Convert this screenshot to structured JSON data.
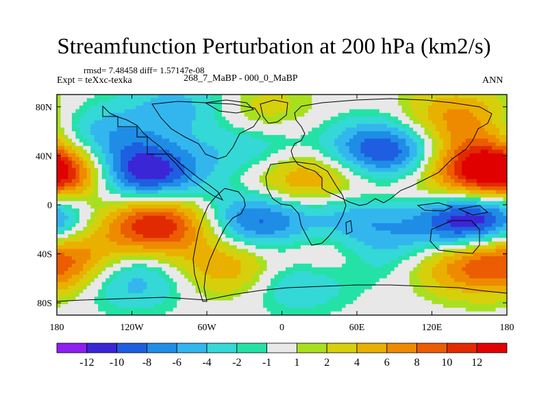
{
  "chart_data": {
    "type": "heatmap",
    "title": "Streamfunction Perturbation at 200 hPa (km2/s)",
    "stats_text": "rmsd= 7.48458 diff= 1.57147e-08",
    "left_label": "Expt = teXxc-texka",
    "center_label": "268_7_MaBP - 000_0_MaBP",
    "right_label": "ANN",
    "xlim": [
      -180,
      180
    ],
    "ylim": [
      -90,
      90
    ],
    "x_ticks": [
      {
        "value": -180,
        "label": "180"
      },
      {
        "value": -120,
        "label": "120W"
      },
      {
        "value": -60,
        "label": "60W"
      },
      {
        "value": 0,
        "label": "0"
      },
      {
        "value": 60,
        "label": "60E"
      },
      {
        "value": 120,
        "label": "120E"
      },
      {
        "value": 180,
        "label": "180"
      }
    ],
    "y_ticks": [
      {
        "value": 80,
        "label": "80N"
      },
      {
        "value": 40,
        "label": "40N"
      },
      {
        "value": 0,
        "label": "0"
      },
      {
        "value": -40,
        "label": "40S"
      },
      {
        "value": -80,
        "label": "80S"
      }
    ],
    "colorbar": {
      "labels": [
        "-12",
        "-10",
        "-8",
        "-6",
        "-4",
        "-2",
        "-1",
        "1",
        "2",
        "4",
        "6",
        "8",
        "10",
        "12"
      ],
      "colors": [
        "#8f1ff0",
        "#3b26d6",
        "#1f5ee0",
        "#1f8de6",
        "#33b6ee",
        "#34d8d6",
        "#24e2a6",
        "#e8e8e8",
        "#a8e020",
        "#d6d00c",
        "#eab000",
        "#ee8a00",
        "#ec5c00",
        "#e22a00",
        "#e00000"
      ]
    },
    "field": {
      "description": "Approximate perturbation features (centre lon, centre lat, amplitude km2/s)",
      "features": [
        {
          "lon": -110,
          "lat": 25,
          "amp": -13
        },
        {
          "lon": -100,
          "lat": -15,
          "amp": 13
        },
        {
          "lon": -175,
          "lat": 25,
          "amp": 9
        },
        {
          "lon": 80,
          "lat": 42,
          "amp": -13
        },
        {
          "lon": 162,
          "lat": 30,
          "amp": 11
        },
        {
          "lon": 145,
          "lat": -15,
          "amp": -11
        },
        {
          "lon": -20,
          "lat": -13,
          "amp": -10
        },
        {
          "lon": 10,
          "lat": 20,
          "amp": 7
        },
        {
          "lon": 60,
          "lat": -10,
          "amp": -6
        },
        {
          "lon": 35,
          "lat": -40,
          "amp": 5
        },
        {
          "lon": -40,
          "lat": -50,
          "amp": 7
        },
        {
          "lon": -120,
          "lat": -60,
          "amp": -6
        },
        {
          "lon": 130,
          "lat": -45,
          "amp": 6
        },
        {
          "lon": 10,
          "lat": -60,
          "amp": -6
        },
        {
          "lon": 140,
          "lat": 70,
          "amp": 7
        },
        {
          "lon": -150,
          "lat": 55,
          "amp": -6
        },
        {
          "lon": -20,
          "lat": 45,
          "amp": -5
        },
        {
          "lon": -80,
          "lat": 80,
          "amp": -5
        },
        {
          "lon": -20,
          "lat": 75,
          "amp": 4
        },
        {
          "lon": 60,
          "lat": 25,
          "amp": 4
        },
        {
          "lon": 85,
          "lat": -40,
          "amp": -5
        },
        {
          "lon": 175,
          "lat": -50,
          "amp": 6
        },
        {
          "lon": 170,
          "lat": -8,
          "amp": -5
        },
        {
          "lon": -170,
          "lat": -40,
          "amp": 5
        },
        {
          "lon": 110,
          "lat": 10,
          "amp": 3
        }
      ]
    }
  }
}
